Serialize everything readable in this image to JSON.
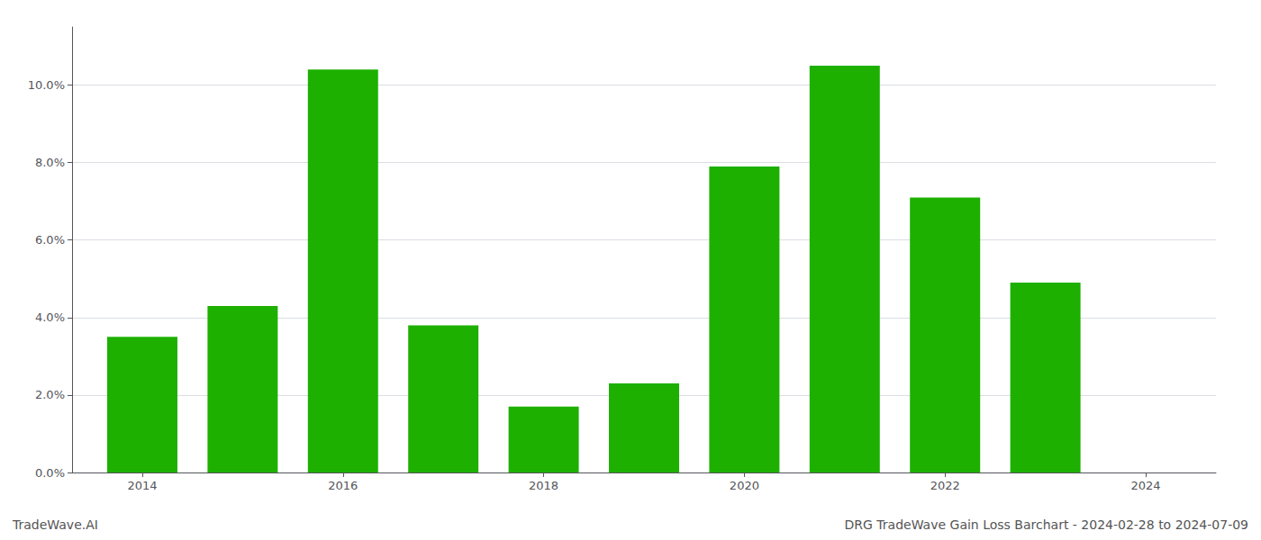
{
  "chart_data": {
    "type": "bar",
    "x": [
      2014,
      2015,
      2016,
      2017,
      2018,
      2019,
      2020,
      2021,
      2022,
      2023
    ],
    "values": [
      0.035,
      0.043,
      0.104,
      0.038,
      0.017,
      0.023,
      0.079,
      0.105,
      0.071,
      0.049
    ],
    "color": "#1db000",
    "xlim": [
      2013.3,
      2024.7
    ],
    "xticks": [
      2014,
      2016,
      2018,
      2020,
      2022,
      2024
    ],
    "ylim": [
      0,
      0.115
    ],
    "yticks": [
      {
        "value": 0.0,
        "label": "0.0%"
      },
      {
        "value": 0.02,
        "label": "2.0%"
      },
      {
        "value": 0.04,
        "label": "4.0%"
      },
      {
        "value": 0.06,
        "label": "6.0%"
      },
      {
        "value": 0.08,
        "label": "8.0%"
      },
      {
        "value": 0.1,
        "label": "10.0%"
      }
    ],
    "grid": true,
    "annotations": [
      "TradeWave.AI",
      "DRG TradeWave Gain Loss Barchart - 2024-02-28 to 2024-07-09"
    ]
  }
}
